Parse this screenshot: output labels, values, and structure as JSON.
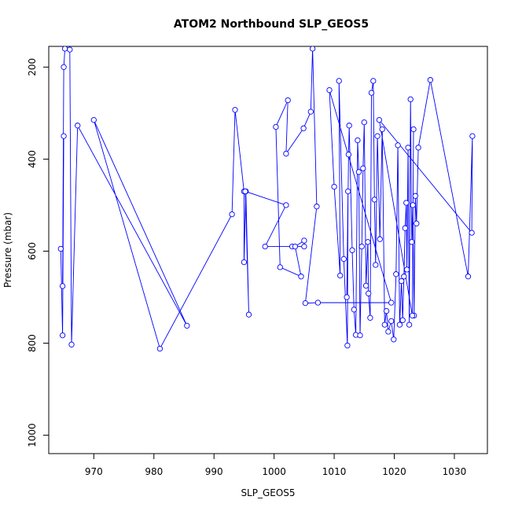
{
  "chart_data": {
    "type": "line",
    "title": "ATOM2 Northbound SLP_GEOS5",
    "xlabel": "SLP_GEOS5",
    "ylabel": "Pressure (mbar)",
    "xlim": [
      962.5,
      1035.5
    ],
    "ylim": [
      1040,
      155
    ],
    "y_reversed": true,
    "x_ticks": [
      970,
      980,
      990,
      1000,
      1010,
      1020,
      1030
    ],
    "y_ticks": [
      200,
      400,
      600,
      800,
      1000
    ],
    "grid": false,
    "line_color": "#0000ff",
    "marker": "open-circle",
    "series": [
      {
        "x": [
          964.5,
          964.8,
          965.0,
          964.8,
          965.0,
          965.2,
          966.0,
          966.3,
          967.3,
          985.5,
          970.0,
          981.0,
          993.0,
          993.5,
          995.0,
          995.0,
          995.3,
          995.8,
          995.2,
          1002.0,
          998.5,
          1003.0,
          1005.0,
          1005.0,
          1003.5,
          1004.5,
          1001.0,
          1000.3,
          1002.3,
          1002.0,
          1004.9,
          1006.1,
          1006.4,
          1007.1,
          1005.2,
          1007.3,
          1019.5,
          1009.2,
          1010.0,
          1011.0,
          1010.8,
          1011.6,
          1012.2,
          1012.3,
          1012.1,
          1012.4,
          1012.5,
          1013.0,
          1013.3,
          1013.6,
          1013.9,
          1014.1,
          1014.3,
          1014.6,
          1014.8,
          1015.0,
          1015.3,
          1015.6,
          1015.7,
          1016.0,
          1016.2,
          1016.5,
          1016.7,
          1016.9,
          1017.2,
          1017.6,
          1018.0,
          1018.4,
          1018.7,
          1019.0,
          1019.5,
          1019.9,
          1020.3,
          1020.6,
          1020.9,
          1021.2,
          1021.4,
          1021.6,
          1021.8,
          1022.0,
          1022.1,
          1022.3,
          1022.5,
          1022.7,
          1022.9,
          1023.1,
          1023.3,
          1023.5,
          1023.7,
          1024.0,
          1026.0,
          1032.3,
          1033.0,
          1032.9,
          1017.5,
          1023.0,
          1023.2
        ],
        "y": [
          595,
          783,
          350,
          676,
          200,
          160,
          162,
          803,
          327,
          762,
          315,
          812,
          520,
          293,
          470,
          624,
          470,
          738,
          470,
          500,
          590,
          590,
          590,
          577,
          590,
          655,
          635,
          330,
          272,
          388,
          333,
          297,
          160,
          503,
          713,
          712,
          712,
          250,
          460,
          653,
          230,
          617,
          805,
          470,
          700,
          390,
          327,
          598,
          727,
          782,
          359,
          428,
          783,
          590,
          420,
          320,
          675,
          580,
          692,
          745,
          256,
          230,
          488,
          630,
          350,
          574,
          335,
          760,
          730,
          775,
          752,
          792,
          650,
          370,
          760,
          665,
          750,
          655,
          550,
          495,
          640,
          375,
          760,
          270,
          580,
          500,
          740,
          480,
          540,
          375,
          228,
          655,
          350,
          560,
          315,
          740,
          335
        ]
      }
    ]
  }
}
